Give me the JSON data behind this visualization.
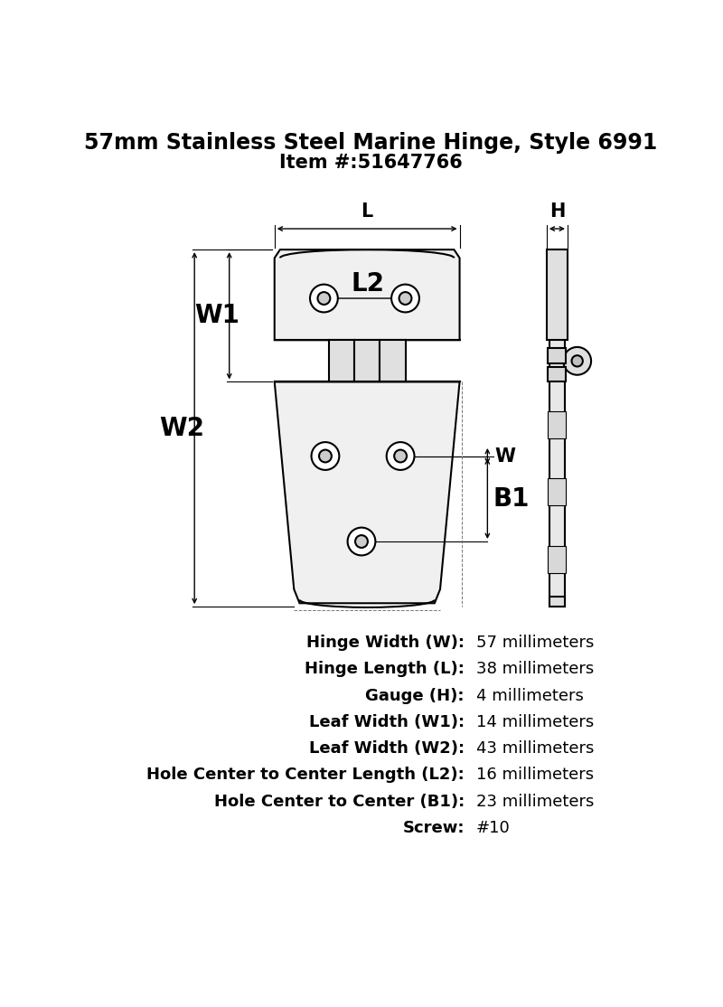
{
  "title_line1": "57mm Stainless Steel Marine Hinge, Style 6991",
  "title_line2": "Item #:51647766",
  "specs": [
    {
      "label": "Hinge Width (W):",
      "value": "57 millimeters"
    },
    {
      "label": "Hinge Length (L):",
      "value": "38 millimeters"
    },
    {
      "label": "Gauge (H):",
      "value": "4 millimeters"
    },
    {
      "label": "Leaf Width (W1):",
      "value": "14 millimeters"
    },
    {
      "label": "Leaf Width (W2):",
      "value": "43 millimeters"
    },
    {
      "label": "Hole Center to Center Length (L2):",
      "value": "16 millimeters"
    },
    {
      "label": "Hole Center to Center (B1):",
      "value": "23 millimeters"
    },
    {
      "label": "Screw:",
      "value": "#10"
    }
  ],
  "bg_color": "#ffffff",
  "line_color": "#000000",
  "title_fontsize": 17,
  "item_fontsize": 15,
  "spec_label_fontsize": 13,
  "spec_value_fontsize": 13,
  "dim_fontsize": 15,
  "label_fontsize": 20
}
